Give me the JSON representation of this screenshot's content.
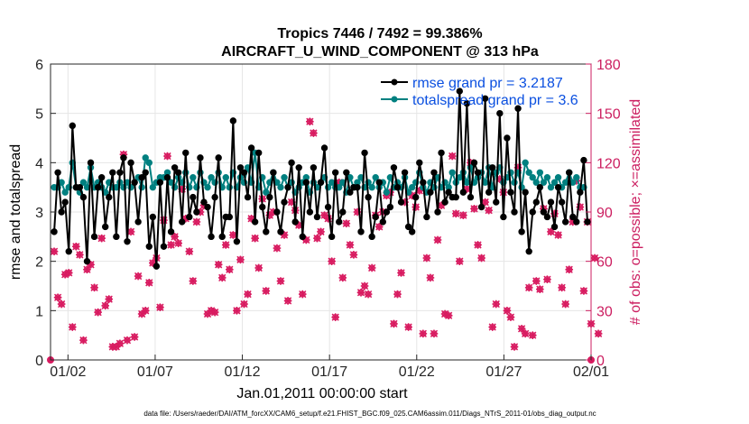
{
  "chart_data": {
    "type": "line",
    "title": "Tropics 7446 / 7492 = 99.386%",
    "subtitle": "AIRCRAFT_U_WIND_COMPONENT @ 313 hPa",
    "xlabel": "Jan.01,2011 00:00:00 start",
    "ylabel_left": "rmse and totalspread",
    "ylabel_right": "# of obs: o=possible; ×=assimilated",
    "footnote": "data file: /Users/raeder/DAI/ATM_forcXX/CAM6_setup/f.e21.FHIST_BGC.f09_025.CAM6assim.011/Diags_NTrS_2011-01/obs_diag_output.nc",
    "xlim": [
      0,
      31
    ],
    "ylim_left": [
      0,
      6
    ],
    "ylim_right": [
      0,
      180
    ],
    "x_ticks": [
      1,
      6,
      11,
      16,
      21,
      26,
      31
    ],
    "x_tick_labels": [
      "01/02",
      "01/07",
      "01/12",
      "01/17",
      "01/22",
      "01/27",
      "02/01"
    ],
    "y_left_ticks": [
      "0",
      "1",
      "2",
      "3",
      "4",
      "5",
      "6"
    ],
    "y_right_ticks": [
      "0",
      "30",
      "60",
      "90",
      "120",
      "150",
      "180"
    ],
    "colors": {
      "rmse": "#000000",
      "spread": "#008080",
      "obs": "#d81b60",
      "legend_text": "#0a4fe0",
      "right_axis": "#cc1e60"
    },
    "series": [
      {
        "name": "rmse grand pr = 3.2187",
        "axis": "left",
        "values": [
          2.6,
          3.8,
          3.0,
          3.2,
          2.2,
          4.75,
          3.5,
          3.5,
          3.3,
          2.0,
          4.0,
          2.5,
          3.5,
          3.7,
          2.7,
          3.3,
          3.8,
          2.5,
          3.8,
          4.1,
          2.4,
          4.0,
          3.6,
          2.8,
          3.7,
          3.8,
          2.3,
          2.9,
          1.9,
          3.6,
          2.3,
          3.7,
          2.6,
          3.9,
          3.8,
          2.8,
          4.2,
          2.9,
          3.3,
          3.0,
          4.1,
          3.2,
          3.1,
          2.5,
          3.3,
          4.1,
          2.5,
          2.9,
          2.9,
          4.85,
          2.4,
          3.9,
          3.8,
          3.3,
          4.3,
          2.8,
          4.2,
          3.1,
          2.6,
          3.3,
          3.8,
          3.0,
          2.6,
          3.2,
          3.5,
          4.0,
          2.8,
          3.9,
          2.5,
          3.6,
          3.0,
          3.9,
          2.9,
          3.6,
          4.3,
          3.1,
          2.5,
          3.8,
          2.8,
          3.0,
          3.8,
          3.4,
          3.5,
          3.5,
          2.6,
          4.2,
          3.3,
          2.5,
          2.9,
          3.6,
          2.8,
          3.0,
          3.1,
          3.9,
          3.5,
          3.2,
          3.8,
          2.7,
          2.6,
          3.3,
          4.0,
          3.6,
          2.9,
          3.4,
          3.8,
          3.0,
          4.2,
          3.2,
          3.4,
          3.3,
          3.3,
          5.45,
          3.4,
          5.2,
          3.3,
          4.0,
          3.8,
          3.1,
          5.3,
          3.4,
          3.9,
          3.2,
          5.0,
          2.9,
          4.5,
          3.4,
          3.0,
          5.1,
          2.6,
          3.4,
          2.2,
          3.0,
          3.2,
          3.5,
          3.0,
          2.9,
          3.2,
          2.7,
          3.5,
          3.2,
          2.8,
          3.8,
          2.9,
          2.8,
          3.4,
          4.05,
          2.8
        ]
      },
      {
        "name": "totalspread grand pr = 3.6",
        "axis": "left",
        "values": [
          3.5,
          3.5,
          3.6,
          3.4,
          3.5,
          4.0,
          3.5,
          3.4,
          3.6,
          3.5,
          3.9,
          3.5,
          3.6,
          3.5,
          3.4,
          3.6,
          3.5,
          3.5,
          3.6,
          3.5,
          3.6,
          3.5,
          3.6,
          3.7,
          3.5,
          4.1,
          4.0,
          3.5,
          3.6,
          3.7,
          3.7,
          3.8,
          3.6,
          3.5,
          3.7,
          3.6,
          3.8,
          3.5,
          3.7,
          3.5,
          3.8,
          3.6,
          3.5,
          3.7,
          3.6,
          3.8,
          3.5,
          3.7,
          3.5,
          3.8,
          3.5,
          3.7,
          3.6,
          3.9,
          3.6,
          4.2,
          3.5,
          3.7,
          3.4,
          3.6,
          3.8,
          3.6,
          3.5,
          3.7,
          3.5,
          3.6,
          3.4,
          3.5,
          3.6,
          3.7,
          3.4,
          3.6,
          3.5,
          3.6,
          3.7,
          3.5,
          3.6,
          3.5,
          3.5,
          3.6,
          3.4,
          3.7,
          3.5,
          3.6,
          3.7,
          3.5,
          3.6,
          3.5,
          3.7,
          3.5,
          3.6,
          3.4,
          3.7,
          3.5,
          3.6,
          3.5,
          3.7,
          3.4,
          3.5,
          3.6,
          3.8,
          3.5,
          3.4,
          3.6,
          3.5,
          3.7,
          3.5,
          3.6,
          3.5,
          3.8,
          3.6,
          3.7,
          3.8,
          3.6,
          3.9,
          3.6,
          3.7,
          3.8,
          3.6,
          3.9,
          3.5,
          3.8,
          3.9,
          3.6,
          3.7,
          3.8,
          3.6,
          3.8,
          3.5,
          4.0,
          3.8,
          3.7,
          3.6,
          3.8,
          3.6,
          3.7,
          3.5,
          3.6,
          3.7,
          3.5,
          3.6,
          3.8,
          3.6,
          3.7,
          3.5,
          3.5
        ]
      },
      {
        "name": "# of obs possible",
        "axis": "right",
        "values": [
          66,
          38,
          34,
          52,
          53,
          20,
          69,
          64,
          12,
          55,
          58,
          44,
          29,
          74,
          33,
          37,
          8,
          8,
          10,
          125,
          12,
          78,
          14,
          51,
          28,
          30,
          47,
          59,
          62,
          32,
          85,
          124,
          70,
          75,
          71,
          104,
          86,
          66,
          48,
          84,
          90,
          94,
          28,
          30,
          29,
          58,
          50,
          70,
          55,
          76,
          30,
          61,
          34,
          40,
          86,
          74,
          56,
          98,
          42,
          88,
          90,
          68,
          48,
          76,
          36,
          96,
          91,
          82,
          40,
          73,
          145,
          138,
          74,
          78,
          88,
          86,
          60,
          26,
          108,
          50,
          83,
          70,
          64,
          90,
          41,
          45,
          40,
          56,
          88,
          81,
          90,
          100,
          102,
          22,
          40,
          53,
          96,
          20,
          100,
          93,
          103,
          16,
          62,
          50,
          16,
          73,
          94,
          28,
          27,
          124,
          89,
          60,
          88,
          104,
          120,
          92,
          70,
          62,
          96,
          91,
          20,
          34,
          110,
          102,
          30,
          26,
          8,
          117,
          19,
          16,
          44,
          15,
          48,
          43,
          92,
          49,
          78,
          89,
          76,
          44,
          34,
          55,
          84,
          109,
          93,
          42,
          84,
          22,
          62,
          16
        ]
      },
      {
        "name": "# of obs assimilated",
        "axis": "right",
        "values": [
          66,
          38,
          34,
          52,
          53,
          20,
          69,
          64,
          12,
          55,
          58,
          44,
          29,
          74,
          33,
          37,
          8,
          8,
          10,
          125,
          12,
          78,
          14,
          51,
          28,
          30,
          47,
          59,
          62,
          32,
          85,
          124,
          70,
          75,
          71,
          104,
          86,
          66,
          48,
          84,
          90,
          94,
          28,
          30,
          29,
          58,
          50,
          70,
          55,
          76,
          30,
          61,
          34,
          40,
          86,
          74,
          56,
          98,
          42,
          88,
          90,
          68,
          48,
          76,
          36,
          96,
          91,
          82,
          40,
          73,
          145,
          138,
          74,
          78,
          88,
          86,
          60,
          26,
          108,
          50,
          83,
          70,
          64,
          90,
          41,
          45,
          40,
          56,
          88,
          81,
          90,
          100,
          102,
          22,
          40,
          53,
          96,
          20,
          100,
          93,
          103,
          16,
          62,
          50,
          16,
          73,
          94,
          28,
          27,
          124,
          89,
          60,
          88,
          104,
          120,
          92,
          70,
          62,
          96,
          91,
          20,
          34,
          110,
          102,
          30,
          26,
          8,
          117,
          19,
          16,
          44,
          15,
          48,
          43,
          92,
          49,
          78,
          89,
          76,
          44,
          34,
          55,
          84,
          109,
          93,
          42,
          84,
          22,
          62,
          16
        ]
      }
    ],
    "legend": {
      "placement": "top-right"
    }
  }
}
